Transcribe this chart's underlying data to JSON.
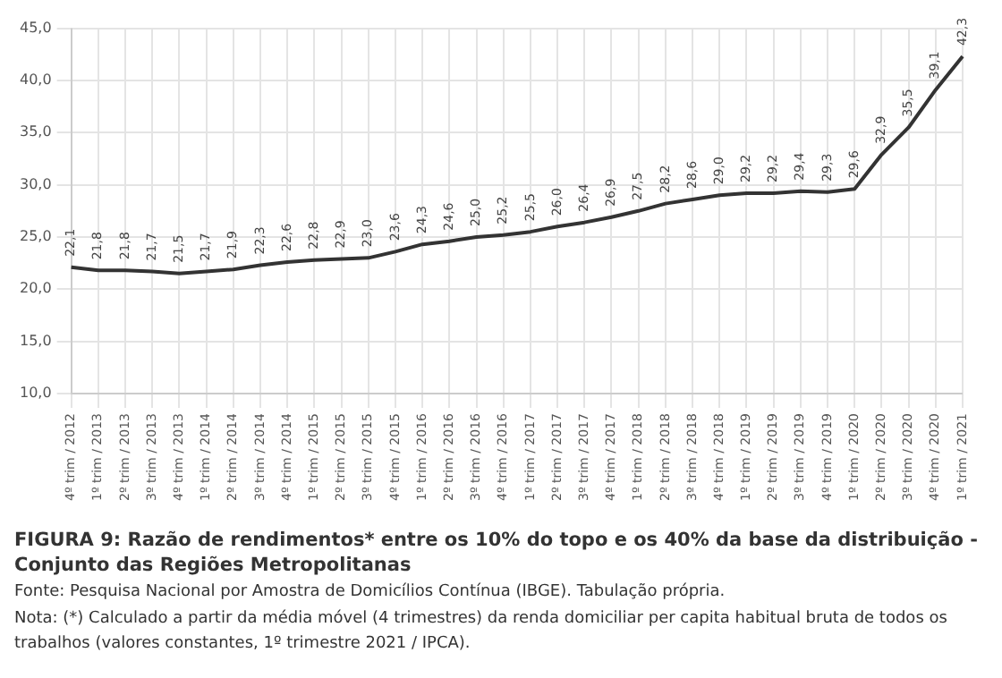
{
  "chart_data": {
    "type": "line",
    "title": "FIGURA 9: Razão de rendimentos* entre os 10% do topo e os 40% da base da distribuição - Conjunto das Regiões Metropolitanas",
    "annotations": [
      "Fonte: Pesquisa Nacional por Amostra de Domicílios Contínua (IBGE). Tabulação própria.",
      "Nota: (*) Calculado a partir da média móvel (4 trimestres) da renda domiciliar per capita habitual bruta de todos os trabalhos (valores constantes, 1º trimestre 2021 / IPCA)."
    ],
    "categories": [
      "4º trim / 2012",
      "1º trim / 2013",
      "2º trim / 2013",
      "3º trim / 2013",
      "4º trim / 2013",
      "1º trim / 2014",
      "2º trim / 2014",
      "3º trim / 2014",
      "4º trim / 2014",
      "1º trim / 2015",
      "2º trim / 2015",
      "3º trim / 2015",
      "4º trim / 2015",
      "1º trim / 2016",
      "2º trim / 2016",
      "3º trim / 2016",
      "4º trim / 2016",
      "1º trim / 2017",
      "2º trim / 2017",
      "3º trim / 2017",
      "4º trim / 2017",
      "1º trim / 2018",
      "2º trim / 2018",
      "3º trim / 2018",
      "4º trim / 2018",
      "1º trim / 2019",
      "2º trim / 2019",
      "3º trim / 2019",
      "4º trim / 2019",
      "1º trim / 2020",
      "2º trim / 2020",
      "3º trim / 2020",
      "4º trim / 2020",
      "1º trim / 2021"
    ],
    "values": [
      22.1,
      21.8,
      21.8,
      21.7,
      21.5,
      21.7,
      21.9,
      22.3,
      22.6,
      22.8,
      22.9,
      23.0,
      23.6,
      24.3,
      24.6,
      25.0,
      25.2,
      25.5,
      26.0,
      26.4,
      26.9,
      27.5,
      28.2,
      28.6,
      29.0,
      29.2,
      29.2,
      29.4,
      29.3,
      29.6,
      32.9,
      35.5,
      39.1,
      42.3
    ],
    "value_labels": [
      "22,1",
      "21,8",
      "21,8",
      "21,7",
      "21,5",
      "21,7",
      "21,9",
      "22,3",
      "22,6",
      "22,8",
      "22,9",
      "23,0",
      "23,6",
      "24,3",
      "24,6",
      "25,0",
      "25,2",
      "25,5",
      "26,0",
      "26,4",
      "26,9",
      "27,5",
      "28,2",
      "28,6",
      "29,0",
      "29,2",
      "29,2",
      "29,4",
      "29,3",
      "29,6",
      "32,9",
      "35,5",
      "39,1",
      "42,3"
    ],
    "color": "#333333",
    "ylim": [
      10,
      45
    ],
    "yticks": [
      {
        "value": 10,
        "label": "10,0"
      },
      {
        "value": 15,
        "label": "15,0"
      },
      {
        "value": 20,
        "label": "20,0"
      },
      {
        "value": 25,
        "label": "25,0"
      },
      {
        "value": 30,
        "label": "30,0"
      },
      {
        "value": 35,
        "label": "35,0"
      },
      {
        "value": 40,
        "label": "40,0"
      },
      {
        "value": 45,
        "label": "45,0"
      }
    ],
    "grid": true,
    "marker": "none",
    "line_style": "solid",
    "legend": false
  }
}
